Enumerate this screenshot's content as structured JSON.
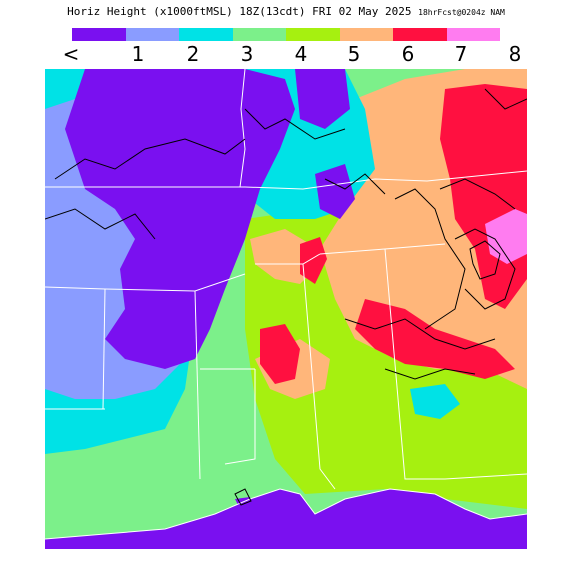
{
  "title": {
    "main": "Horiz Height (x1000ftMSL) 18Z(13cdt) FRI 02 May 2025",
    "forecast": "18hrFcst@0204z NAM"
  },
  "legend": {
    "labels": [
      "<",
      "1",
      "2",
      "3",
      "4",
      "5",
      "6",
      "7",
      "8"
    ],
    "colors": [
      "#7a10f0",
      "#8a9cff",
      "#00e2e6",
      "#7cf08a",
      "#a6f010",
      "#ffb67a",
      "#ff1040",
      "#ff7cf0"
    ]
  },
  "map": {
    "land_boundary_color": "#ffffff",
    "contour_color": "#000000"
  }
}
